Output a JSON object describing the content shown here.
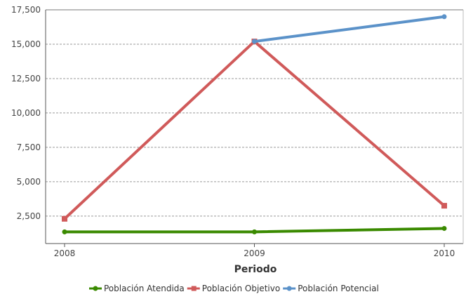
{
  "chart_data": {
    "type": "line",
    "title": "",
    "xlabel": "Periodo",
    "ylabel": "",
    "categories": [
      "2008",
      "2009",
      "2010"
    ],
    "ylim": [
      0,
      17500
    ],
    "yticks": [
      2500,
      5000,
      7500,
      10000,
      12500,
      15000,
      17500
    ],
    "ytick_labels": [
      "2,500",
      "5,000",
      "7,500",
      "10,000",
      "12,500",
      "15,000",
      "17,500"
    ],
    "grid": true,
    "legend_position": "bottom",
    "series": [
      {
        "name": "Población Atendida",
        "values": [
          1350,
          1350,
          1600
        ],
        "color": "#3a8a00",
        "marker": "circle"
      },
      {
        "name": "Población Objetivo",
        "values": [
          2300,
          15200,
          3250
        ],
        "color": "#d05a5a",
        "marker": "square"
      },
      {
        "name": "Población Potencial",
        "values": [
          null,
          15200,
          17000
        ],
        "color": "#5b92c9",
        "marker": "circle"
      }
    ]
  }
}
